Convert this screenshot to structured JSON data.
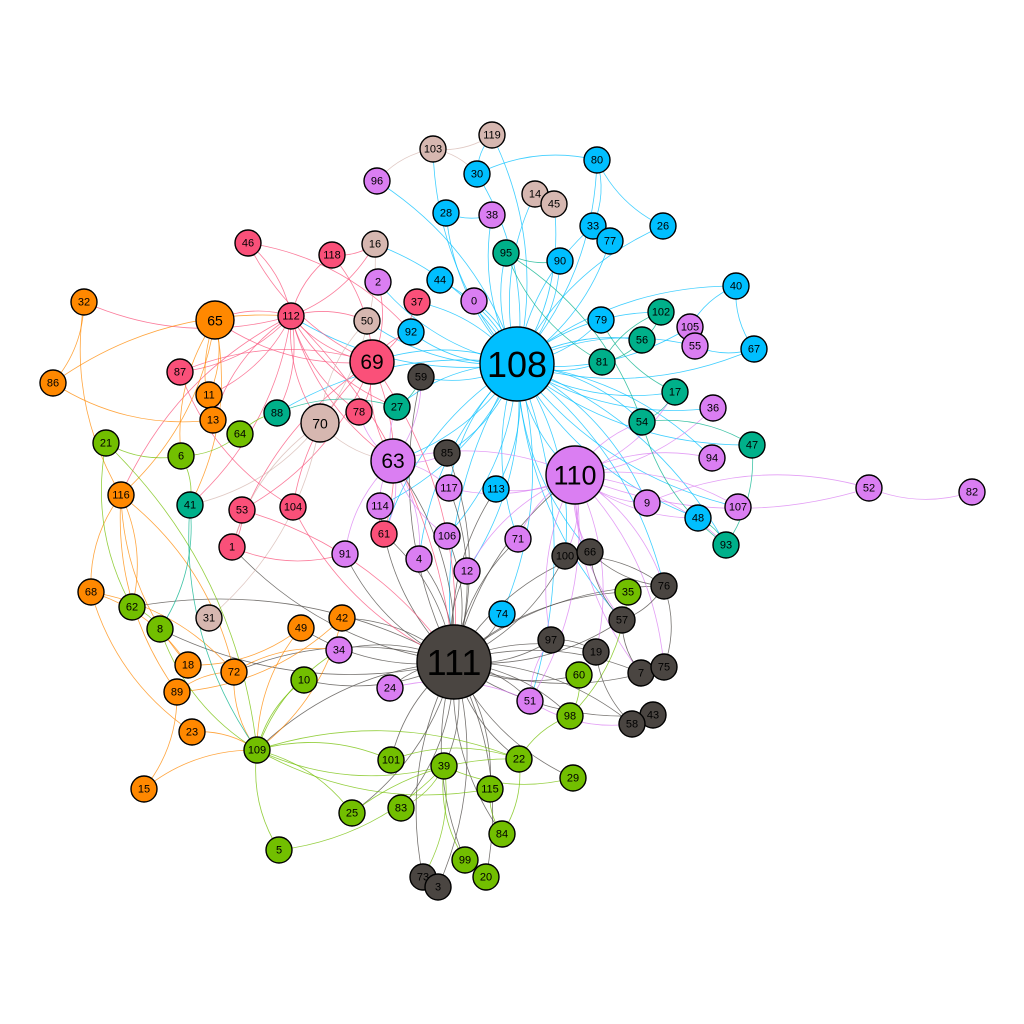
{
  "colors": {
    "blue": "#00bfff",
    "violet": "#da7ef2",
    "red": "#fa5079",
    "orange": "#ff8800",
    "green": "#72bf00",
    "teal": "#00b08a",
    "tan": "#d6b7b0",
    "dark": "#4a4541"
  },
  "nodes": [
    {
      "id": "108",
      "group": "blue",
      "size": "xl"
    },
    {
      "id": "111",
      "group": "dark",
      "size": "xl"
    },
    {
      "id": "110",
      "group": "violet",
      "size": "l"
    },
    {
      "id": "69",
      "group": "red",
      "size": "m"
    },
    {
      "id": "63",
      "group": "violet",
      "size": "m"
    },
    {
      "id": "70",
      "group": "tan",
      "size": "s"
    },
    {
      "id": "65",
      "group": "orange",
      "size": "s"
    },
    {
      "id": "119",
      "group": "tan"
    },
    {
      "id": "103",
      "group": "tan"
    },
    {
      "id": "80",
      "group": "blue"
    },
    {
      "id": "30",
      "group": "blue"
    },
    {
      "id": "96",
      "group": "violet"
    },
    {
      "id": "14",
      "group": "tan"
    },
    {
      "id": "45",
      "group": "tan"
    },
    {
      "id": "28",
      "group": "blue"
    },
    {
      "id": "38",
      "group": "violet"
    },
    {
      "id": "26",
      "group": "blue"
    },
    {
      "id": "33",
      "group": "blue"
    },
    {
      "id": "77",
      "group": "blue"
    },
    {
      "id": "46",
      "group": "red"
    },
    {
      "id": "118",
      "group": "red"
    },
    {
      "id": "16",
      "group": "tan"
    },
    {
      "id": "95",
      "group": "teal"
    },
    {
      "id": "90",
      "group": "blue"
    },
    {
      "id": "32",
      "group": "orange"
    },
    {
      "id": "2",
      "group": "violet"
    },
    {
      "id": "44",
      "group": "blue"
    },
    {
      "id": "40",
      "group": "blue"
    },
    {
      "id": "37",
      "group": "red"
    },
    {
      "id": "0",
      "group": "violet"
    },
    {
      "id": "112",
      "group": "red"
    },
    {
      "id": "50",
      "group": "tan"
    },
    {
      "id": "102",
      "group": "teal"
    },
    {
      "id": "105",
      "group": "violet"
    },
    {
      "id": "79",
      "group": "blue"
    },
    {
      "id": "92",
      "group": "blue"
    },
    {
      "id": "56",
      "group": "teal"
    },
    {
      "id": "55",
      "group": "violet"
    },
    {
      "id": "67",
      "group": "blue"
    },
    {
      "id": "81",
      "group": "teal"
    },
    {
      "id": "86",
      "group": "orange"
    },
    {
      "id": "87",
      "group": "red"
    },
    {
      "id": "59",
      "group": "dark"
    },
    {
      "id": "11",
      "group": "orange"
    },
    {
      "id": "17",
      "group": "teal"
    },
    {
      "id": "88",
      "group": "teal"
    },
    {
      "id": "27",
      "group": "teal"
    },
    {
      "id": "78",
      "group": "red"
    },
    {
      "id": "36",
      "group": "violet"
    },
    {
      "id": "13",
      "group": "orange"
    },
    {
      "id": "54",
      "group": "teal"
    },
    {
      "id": "64",
      "group": "green"
    },
    {
      "id": "21",
      "group": "green"
    },
    {
      "id": "6",
      "group": "green"
    },
    {
      "id": "85",
      "group": "dark"
    },
    {
      "id": "47",
      "group": "teal"
    },
    {
      "id": "94",
      "group": "violet"
    },
    {
      "id": "117",
      "group": "violet"
    },
    {
      "id": "113",
      "group": "blue"
    },
    {
      "id": "52",
      "group": "violet"
    },
    {
      "id": "82",
      "group": "violet"
    },
    {
      "id": "116",
      "group": "orange"
    },
    {
      "id": "41",
      "group": "teal"
    },
    {
      "id": "53",
      "group": "red"
    },
    {
      "id": "104",
      "group": "red"
    },
    {
      "id": "114",
      "group": "violet"
    },
    {
      "id": "9",
      "group": "violet"
    },
    {
      "id": "107",
      "group": "violet"
    },
    {
      "id": "48",
      "group": "blue"
    },
    {
      "id": "61",
      "group": "red"
    },
    {
      "id": "106",
      "group": "violet"
    },
    {
      "id": "71",
      "group": "violet"
    },
    {
      "id": "93",
      "group": "teal"
    },
    {
      "id": "1",
      "group": "red"
    },
    {
      "id": "91",
      "group": "violet"
    },
    {
      "id": "100",
      "group": "dark"
    },
    {
      "id": "66",
      "group": "dark"
    },
    {
      "id": "4",
      "group": "violet"
    },
    {
      "id": "12",
      "group": "violet"
    },
    {
      "id": "68",
      "group": "orange"
    },
    {
      "id": "35",
      "group": "green"
    },
    {
      "id": "76",
      "group": "dark"
    },
    {
      "id": "62",
      "group": "green"
    },
    {
      "id": "74",
      "group": "blue"
    },
    {
      "id": "57",
      "group": "dark"
    },
    {
      "id": "8",
      "group": "green"
    },
    {
      "id": "31",
      "group": "tan"
    },
    {
      "id": "42",
      "group": "orange"
    },
    {
      "id": "49",
      "group": "orange"
    },
    {
      "id": "97",
      "group": "dark"
    },
    {
      "id": "34",
      "group": "violet"
    },
    {
      "id": "19",
      "group": "dark"
    },
    {
      "id": "18",
      "group": "orange"
    },
    {
      "id": "72",
      "group": "orange"
    },
    {
      "id": "60",
      "group": "green"
    },
    {
      "id": "7",
      "group": "dark"
    },
    {
      "id": "75",
      "group": "dark"
    },
    {
      "id": "10",
      "group": "green"
    },
    {
      "id": "89",
      "group": "orange"
    },
    {
      "id": "24",
      "group": "violet"
    },
    {
      "id": "51",
      "group": "violet"
    },
    {
      "id": "98",
      "group": "green"
    },
    {
      "id": "43",
      "group": "dark"
    },
    {
      "id": "58",
      "group": "dark"
    },
    {
      "id": "23",
      "group": "orange"
    },
    {
      "id": "109",
      "group": "green"
    },
    {
      "id": "101",
      "group": "green"
    },
    {
      "id": "39",
      "group": "green"
    },
    {
      "id": "22",
      "group": "green"
    },
    {
      "id": "29",
      "group": "green"
    },
    {
      "id": "115",
      "group": "green"
    },
    {
      "id": "15",
      "group": "orange"
    },
    {
      "id": "25",
      "group": "green"
    },
    {
      "id": "83",
      "group": "green"
    },
    {
      "id": "84",
      "group": "green"
    },
    {
      "id": "5",
      "group": "green"
    },
    {
      "id": "99",
      "group": "green"
    },
    {
      "id": "20",
      "group": "green"
    },
    {
      "id": "73",
      "group": "dark"
    },
    {
      "id": "3",
      "group": "dark"
    }
  ],
  "edges": [
    [
      "108",
      "30"
    ],
    [
      "108",
      "28"
    ],
    [
      "108",
      "44"
    ],
    [
      "108",
      "92"
    ],
    [
      "108",
      "0"
    ],
    [
      "108",
      "2"
    ],
    [
      "108",
      "96"
    ],
    [
      "108",
      "38"
    ],
    [
      "108",
      "90"
    ],
    [
      "108",
      "33"
    ],
    [
      "108",
      "77"
    ],
    [
      "108",
      "26"
    ],
    [
      "108",
      "79"
    ],
    [
      "108",
      "102"
    ],
    [
      "108",
      "81"
    ],
    [
      "108",
      "56"
    ],
    [
      "108",
      "105"
    ],
    [
      "108",
      "55"
    ],
    [
      "108",
      "67"
    ],
    [
      "108",
      "40"
    ],
    [
      "108",
      "17"
    ],
    [
      "108",
      "54"
    ],
    [
      "108",
      "36"
    ],
    [
      "108",
      "94"
    ],
    [
      "108",
      "110"
    ],
    [
      "108",
      "9"
    ],
    [
      "108",
      "48"
    ],
    [
      "108",
      "113"
    ],
    [
      "108",
      "117"
    ],
    [
      "108",
      "106"
    ],
    [
      "108",
      "71"
    ],
    [
      "108",
      "12"
    ],
    [
      "108",
      "4"
    ],
    [
      "108",
      "74"
    ],
    [
      "108",
      "111"
    ],
    [
      "108",
      "63"
    ],
    [
      "108",
      "69"
    ],
    [
      "108",
      "59"
    ],
    [
      "108",
      "27"
    ],
    [
      "108",
      "112"
    ],
    [
      "108",
      "37"
    ],
    [
      "108",
      "50"
    ],
    [
      "108",
      "16"
    ],
    [
      "108",
      "95"
    ],
    [
      "108",
      "80"
    ],
    [
      "108",
      "103"
    ],
    [
      "108",
      "119"
    ],
    [
      "108",
      "14"
    ],
    [
      "108",
      "45"
    ],
    [
      "108",
      "85"
    ],
    [
      "108",
      "61"
    ],
    [
      "108",
      "114"
    ],
    [
      "108",
      "88"
    ],
    [
      "108",
      "100"
    ],
    [
      "108",
      "66"
    ],
    [
      "108",
      "76"
    ],
    [
      "108",
      "57"
    ],
    [
      "108",
      "51"
    ],
    [
      "108",
      "107"
    ],
    [
      "108",
      "93"
    ],
    [
      "108",
      "47"
    ],
    [
      "30",
      "80"
    ],
    [
      "80",
      "26"
    ],
    [
      "80",
      "33"
    ],
    [
      "40",
      "67"
    ],
    [
      "67",
      "55"
    ],
    [
      "40",
      "105"
    ],
    [
      "30",
      "119"
    ],
    [
      "103",
      "119"
    ],
    [
      "103",
      "30"
    ],
    [
      "103",
      "96"
    ],
    [
      "14",
      "45"
    ],
    [
      "28",
      "38"
    ],
    [
      "33",
      "77"
    ],
    [
      "111",
      "100"
    ],
    [
      "111",
      "66"
    ],
    [
      "111",
      "97"
    ],
    [
      "111",
      "19"
    ],
    [
      "111",
      "57"
    ],
    [
      "111",
      "7"
    ],
    [
      "111",
      "75"
    ],
    [
      "111",
      "58"
    ],
    [
      "111",
      "43"
    ],
    [
      "111",
      "76"
    ],
    [
      "111",
      "73"
    ],
    [
      "111",
      "3"
    ],
    [
      "111",
      "85"
    ],
    [
      "111",
      "59"
    ],
    [
      "111",
      "24"
    ],
    [
      "111",
      "51"
    ],
    [
      "111",
      "34"
    ],
    [
      "111",
      "91"
    ],
    [
      "111",
      "4"
    ],
    [
      "111",
      "12"
    ],
    [
      "111",
      "106"
    ],
    [
      "111",
      "71"
    ],
    [
      "111",
      "61"
    ],
    [
      "111",
      "114"
    ],
    [
      "111",
      "117"
    ],
    [
      "111",
      "113"
    ],
    [
      "111",
      "74"
    ],
    [
      "111",
      "110"
    ],
    [
      "111",
      "63"
    ],
    [
      "111",
      "39"
    ],
    [
      "111",
      "22"
    ],
    [
      "111",
      "115"
    ],
    [
      "111",
      "101"
    ],
    [
      "111",
      "83"
    ],
    [
      "111",
      "99"
    ],
    [
      "111",
      "20"
    ],
    [
      "111",
      "84"
    ],
    [
      "111",
      "98"
    ],
    [
      "111",
      "60"
    ],
    [
      "111",
      "35"
    ],
    [
      "111",
      "109"
    ],
    [
      "111",
      "10"
    ],
    [
      "111",
      "72"
    ],
    [
      "111",
      "49"
    ],
    [
      "111",
      "42"
    ],
    [
      "111",
      "1"
    ],
    [
      "111",
      "62"
    ],
    [
      "111",
      "8"
    ],
    [
      "111",
      "29"
    ],
    [
      "111",
      "25"
    ],
    [
      "110",
      "9"
    ],
    [
      "110",
      "94"
    ],
    [
      "110",
      "36"
    ],
    [
      "110",
      "107"
    ],
    [
      "110",
      "48"
    ],
    [
      "110",
      "100"
    ],
    [
      "110",
      "66"
    ],
    [
      "110",
      "76"
    ],
    [
      "110",
      "57"
    ],
    [
      "110",
      "54"
    ],
    [
      "110",
      "17"
    ],
    [
      "110",
      "113"
    ],
    [
      "110",
      "71"
    ],
    [
      "110",
      "51"
    ],
    [
      "110",
      "12"
    ],
    [
      "110",
      "117"
    ],
    [
      "110",
      "63"
    ],
    [
      "110",
      "93"
    ],
    [
      "110",
      "97"
    ],
    [
      "110",
      "19"
    ],
    [
      "110",
      "7"
    ],
    [
      "110",
      "75"
    ],
    [
      "52",
      "82"
    ],
    [
      "52",
      "110"
    ],
    [
      "52",
      "9"
    ],
    [
      "69",
      "112"
    ],
    [
      "69",
      "118"
    ],
    [
      "69",
      "46"
    ],
    [
      "69",
      "37"
    ],
    [
      "69",
      "78"
    ],
    [
      "69",
      "87"
    ],
    [
      "69",
      "65"
    ],
    [
      "69",
      "2"
    ],
    [
      "69",
      "92"
    ],
    [
      "69",
      "63"
    ],
    [
      "69",
      "61"
    ],
    [
      "69",
      "1"
    ],
    [
      "69",
      "53"
    ],
    [
      "69",
      "104"
    ],
    [
      "69",
      "111"
    ],
    [
      "112",
      "46"
    ],
    [
      "112",
      "118"
    ],
    [
      "112",
      "65"
    ],
    [
      "112",
      "87"
    ],
    [
      "112",
      "78"
    ],
    [
      "112",
      "41"
    ],
    [
      "112",
      "116"
    ],
    [
      "112",
      "11"
    ],
    [
      "112",
      "13"
    ],
    [
      "112",
      "88"
    ],
    [
      "112",
      "27"
    ],
    [
      "112",
      "32"
    ],
    [
      "112",
      "63"
    ],
    [
      "112",
      "111"
    ],
    [
      "112",
      "70"
    ],
    [
      "112",
      "50"
    ],
    [
      "112",
      "16"
    ],
    [
      "70",
      "50"
    ],
    [
      "70",
      "16"
    ],
    [
      "70",
      "41"
    ],
    [
      "70",
      "1"
    ],
    [
      "70",
      "31"
    ],
    [
      "70",
      "63"
    ],
    [
      "65",
      "11"
    ],
    [
      "65",
      "13"
    ],
    [
      "65",
      "116"
    ],
    [
      "65",
      "6"
    ],
    [
      "65",
      "41"
    ],
    [
      "32",
      "116"
    ],
    [
      "32",
      "86"
    ],
    [
      "86",
      "13"
    ],
    [
      "86",
      "112"
    ],
    [
      "116",
      "68"
    ],
    [
      "116",
      "62"
    ],
    [
      "116",
      "18"
    ],
    [
      "116",
      "72"
    ],
    [
      "116",
      "89"
    ],
    [
      "68",
      "18"
    ],
    [
      "68",
      "23"
    ],
    [
      "68",
      "72"
    ],
    [
      "89",
      "42"
    ],
    [
      "89",
      "72"
    ],
    [
      "18",
      "49"
    ],
    [
      "15",
      "109"
    ],
    [
      "15",
      "89"
    ],
    [
      "23",
      "109"
    ],
    [
      "72",
      "109"
    ],
    [
      "72",
      "34"
    ],
    [
      "49",
      "109"
    ],
    [
      "42",
      "109"
    ],
    [
      "21",
      "6"
    ],
    [
      "21",
      "109"
    ],
    [
      "21",
      "62"
    ],
    [
      "6",
      "41"
    ],
    [
      "6",
      "64"
    ],
    [
      "41",
      "8"
    ],
    [
      "41",
      "109"
    ],
    [
      "62",
      "8"
    ],
    [
      "8",
      "109"
    ],
    [
      "64",
      "88"
    ],
    [
      "10",
      "109"
    ],
    [
      "109",
      "101"
    ],
    [
      "109",
      "39"
    ],
    [
      "109",
      "22"
    ],
    [
      "109",
      "5"
    ],
    [
      "109",
      "25"
    ],
    [
      "109",
      "115"
    ],
    [
      "109",
      "34"
    ],
    [
      "5",
      "39"
    ],
    [
      "25",
      "22"
    ],
    [
      "83",
      "39"
    ],
    [
      "101",
      "22"
    ],
    [
      "39",
      "29"
    ],
    [
      "22",
      "98"
    ],
    [
      "98",
      "35"
    ],
    [
      "60",
      "98"
    ],
    [
      "115",
      "84"
    ],
    [
      "99",
      "20"
    ],
    [
      "73",
      "3"
    ],
    [
      "39",
      "73"
    ],
    [
      "39",
      "99"
    ],
    [
      "22",
      "84"
    ],
    [
      "100",
      "66"
    ],
    [
      "100",
      "76"
    ],
    [
      "66",
      "76"
    ],
    [
      "76",
      "57"
    ],
    [
      "57",
      "7"
    ],
    [
      "7",
      "75"
    ],
    [
      "58",
      "43"
    ],
    [
      "97",
      "19"
    ],
    [
      "19",
      "58"
    ],
    [
      "76",
      "75"
    ],
    [
      "66",
      "57"
    ],
    [
      "51",
      "97"
    ],
    [
      "51",
      "58"
    ],
    [
      "24",
      "51"
    ],
    [
      "63",
      "85"
    ],
    [
      "63",
      "117"
    ],
    [
      "63",
      "114"
    ],
    [
      "63",
      "61"
    ],
    [
      "63",
      "91"
    ],
    [
      "63",
      "4"
    ],
    [
      "63",
      "106"
    ],
    [
      "63",
      "27"
    ],
    [
      "63",
      "59"
    ],
    [
      "63",
      "78"
    ],
    [
      "95",
      "81"
    ],
    [
      "95",
      "54"
    ],
    [
      "95",
      "90"
    ],
    [
      "81",
      "102"
    ],
    [
      "81",
      "56"
    ],
    [
      "102",
      "56"
    ],
    [
      "54",
      "17"
    ],
    [
      "54",
      "47"
    ],
    [
      "54",
      "93"
    ],
    [
      "47",
      "93"
    ],
    [
      "93",
      "48"
    ],
    [
      "88",
      "27"
    ],
    [
      "27",
      "59"
    ],
    [
      "17",
      "79"
    ],
    [
      "104",
      "111"
    ],
    [
      "53",
      "1"
    ],
    [
      "1",
      "91"
    ],
    [
      "53",
      "111"
    ],
    [
      "87",
      "104"
    ],
    [
      "61",
      "114"
    ],
    [
      "118",
      "16"
    ],
    [
      "46",
      "92"
    ]
  ]
}
